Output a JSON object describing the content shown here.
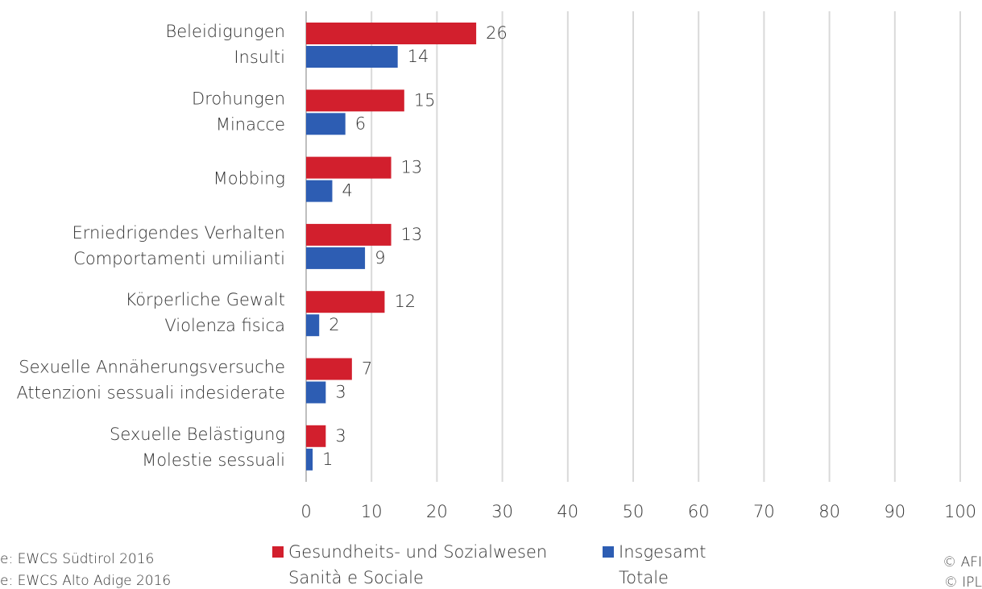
{
  "chart_data": {
    "type": "hbar",
    "categories": [
      [
        "Beleidigungen",
        "Insulti"
      ],
      [
        "Drohungen",
        "Minacce"
      ],
      [
        "Mobbing"
      ],
      [
        "Erniedrigendes Verhalten",
        "Comportamenti umilianti"
      ],
      [
        "Körperliche Gewalt",
        "Violenza fisica"
      ],
      [
        "Sexuelle Annäherungsversuche",
        "Attenzioni sessuali indesiderate"
      ],
      [
        "Sexuelle Belästigung",
        "Molestie sessuali"
      ]
    ],
    "series": [
      {
        "name": [
          "Gesundheits- und Sozialwesen",
          "Sanità e Sociale"
        ],
        "color": "#d21f2d",
        "values": [
          26,
          15,
          13,
          13,
          12,
          7,
          3
        ]
      },
      {
        "name": [
          "Insgesamt",
          "Totale"
        ],
        "color": "#2d5db3",
        "values": [
          14,
          6,
          4,
          9,
          2,
          3,
          1
        ]
      }
    ],
    "xlim": [
      0,
      100
    ],
    "xticks": [
      0,
      10,
      20,
      30,
      40,
      50,
      60,
      70,
      80,
      90,
      100
    ],
    "grid": true,
    "source": [
      "e: EWCS Südtirol 2016",
      "e: EWCS Alto Adige 2016"
    ],
    "credit": [
      "© AFI",
      "© IPL"
    ]
  }
}
